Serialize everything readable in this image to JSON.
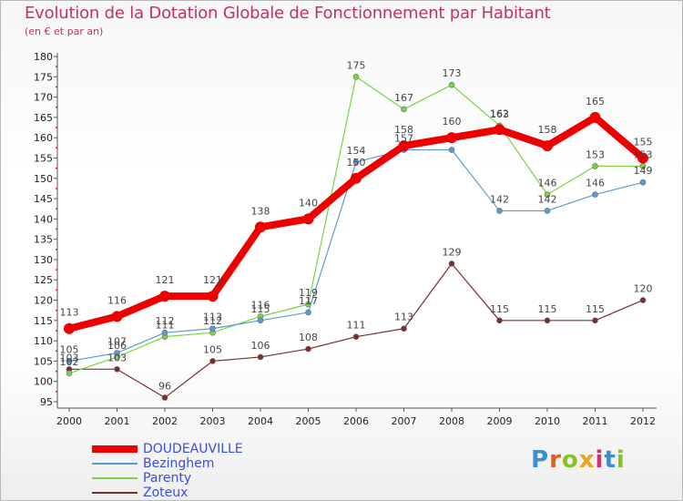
{
  "header": {
    "title": "Evolution de la Dotation Globale de Fonctionnement par Habitant",
    "subtitle": "(en € et par an)"
  },
  "brand": {
    "text": "Proxiti",
    "letter_colors": [
      "#3a8fd0",
      "#e65c1f",
      "#8bbf2a",
      "#f0a21c",
      "#d4307a",
      "#3a8fd0",
      "#8bbf2a"
    ]
  },
  "chart_data": {
    "type": "line",
    "title": "Evolution de la Dotation Globale de Fonctionnement par Habitant",
    "subtitle": "(en € et par an)",
    "xlabel": "",
    "ylabel": "",
    "categories": [
      "2000",
      "2001",
      "2002",
      "2003",
      "2004",
      "2005",
      "2006",
      "2007",
      "2008",
      "2009",
      "2010",
      "2011",
      "2012"
    ],
    "ylim": [
      95,
      180
    ],
    "yticks": [
      95,
      100,
      105,
      110,
      115,
      120,
      125,
      130,
      135,
      140,
      145,
      150,
      155,
      160,
      165,
      170,
      175,
      180
    ],
    "grid": false,
    "legend_position": "bottom-left",
    "series": [
      {
        "name": "DOUDEAUVILLE",
        "color": "#ee0000",
        "values": [
          113,
          116,
          121,
          121,
          138,
          140,
          150,
          158,
          160,
          162,
          158,
          165,
          155
        ],
        "labels_shown": [
          true,
          true,
          true,
          true,
          true,
          true,
          true,
          true,
          true,
          true,
          true,
          true,
          true
        ]
      },
      {
        "name": "Bezinghem",
        "color": "#5a9bd5",
        "values": [
          105,
          107,
          112,
          113,
          115,
          117,
          154,
          157,
          157,
          142,
          142,
          146,
          149
        ],
        "labels_shown": [
          true,
          true,
          true,
          true,
          true,
          true,
          true,
          true,
          false,
          true,
          true,
          true,
          true
        ]
      },
      {
        "name": "Parenty",
        "color": "#7dd145",
        "values": [
          102,
          106,
          111,
          112,
          116,
          119,
          175,
          167,
          173,
          163,
          146,
          153,
          153
        ],
        "labels_shown": [
          true,
          true,
          true,
          true,
          true,
          true,
          true,
          true,
          true,
          true,
          true,
          true,
          true
        ]
      },
      {
        "name": "Zoteux",
        "color": "#7a2e2e",
        "values": [
          103,
          103,
          96,
          105,
          106,
          108,
          111,
          113,
          129,
          115,
          115,
          115,
          120
        ],
        "labels_shown": [
          true,
          true,
          true,
          true,
          true,
          true,
          true,
          true,
          true,
          true,
          true,
          true,
          true
        ]
      }
    ]
  }
}
